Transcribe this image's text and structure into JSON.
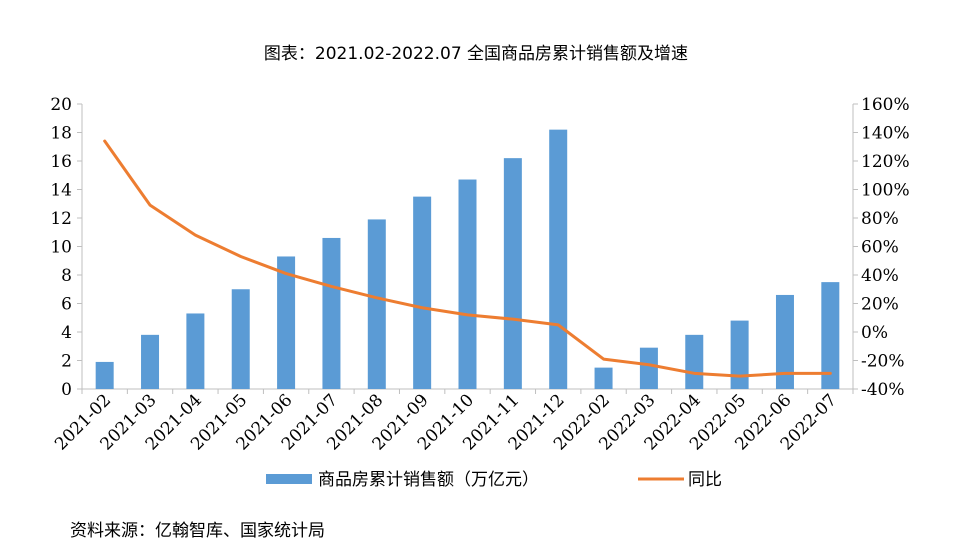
{
  "source_note": "资料来源：亿翰智库、国家统计局",
  "colors": {
    "bar": "#5B9BD5",
    "line": "#ED7D31",
    "axis": "#bfbfbf"
  },
  "chart_data": {
    "type": "bar",
    "title": "图表：2021.02-2022.07 全国商品房累计销售额及增速",
    "categories": [
      "2021-02",
      "2021-03",
      "2021-04",
      "2021-05",
      "2021-06",
      "2021-07",
      "2021-08",
      "2021-09",
      "2021-10",
      "2021-11",
      "2021-12",
      "2022-02",
      "2022-03",
      "2022-04",
      "2022-05",
      "2022-06",
      "2022-07"
    ],
    "series": [
      {
        "name": "商品房累计销售额（万亿元）",
        "type": "bar",
        "axis": "left",
        "values": [
          1.9,
          3.8,
          5.3,
          7.0,
          9.3,
          10.6,
          11.9,
          13.5,
          14.7,
          16.2,
          18.2,
          1.5,
          2.9,
          3.8,
          4.8,
          6.6,
          7.5
        ]
      },
      {
        "name": "同比",
        "type": "line",
        "axis": "right",
        "values": [
          134,
          89,
          68,
          53,
          41,
          32,
          24,
          17,
          12,
          9,
          5,
          -19,
          -23,
          -29,
          -31,
          -29,
          -29
        ]
      }
    ],
    "y_left": {
      "min": 0,
      "max": 20,
      "step": 2,
      "ticks": [
        "0",
        "2",
        "4",
        "6",
        "8",
        "10",
        "12",
        "14",
        "16",
        "18",
        "20"
      ]
    },
    "y_right": {
      "min": -40,
      "max": 160,
      "step": 20,
      "ticks": [
        "-40%",
        "-20%",
        "0%",
        "20%",
        "40%",
        "60%",
        "80%",
        "100%",
        "120%",
        "140%",
        "160%"
      ]
    },
    "grid": false,
    "legend_position": "bottom"
  }
}
